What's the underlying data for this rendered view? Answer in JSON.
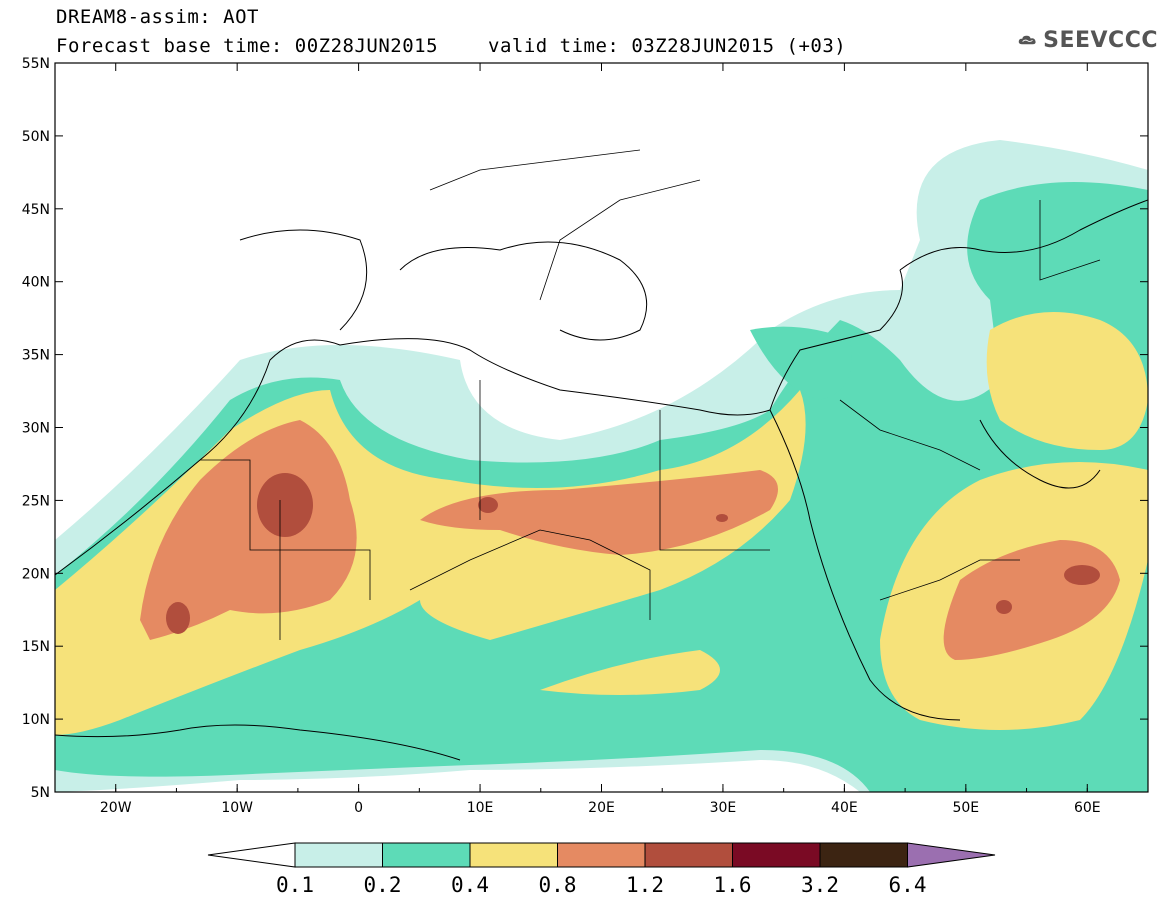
{
  "header": {
    "title_line1": "DREAM8-assim: AOT",
    "base_time": "Forecast base time: 00Z28JUN2015",
    "valid_time": "valid time: 03Z28JUN2015 (+03)"
  },
  "logo": {
    "text": "SEEVCCC",
    "icon": "cloud-icon"
  },
  "axes": {
    "lat_ticks": [
      "55N",
      "50N",
      "45N",
      "40N",
      "35N",
      "30N",
      "25N",
      "20N",
      "15N",
      "10N",
      "5N"
    ],
    "lon_ticks": [
      "20W",
      "10W",
      "0",
      "10E",
      "20E",
      "30E",
      "40E",
      "50E",
      "60E"
    ]
  },
  "colorbar": {
    "labels": [
      "0.1",
      "0.2",
      "0.4",
      "0.8",
      "1.2",
      "1.6",
      "3.2",
      "6.4"
    ],
    "colors": [
      "#ffffff",
      "#c8efe8",
      "#5ddbb7",
      "#f6e27a",
      "#e58a62",
      "#b14e3d",
      "#7a0a24",
      "#3c2412",
      "#9b6fb0"
    ]
  }
}
